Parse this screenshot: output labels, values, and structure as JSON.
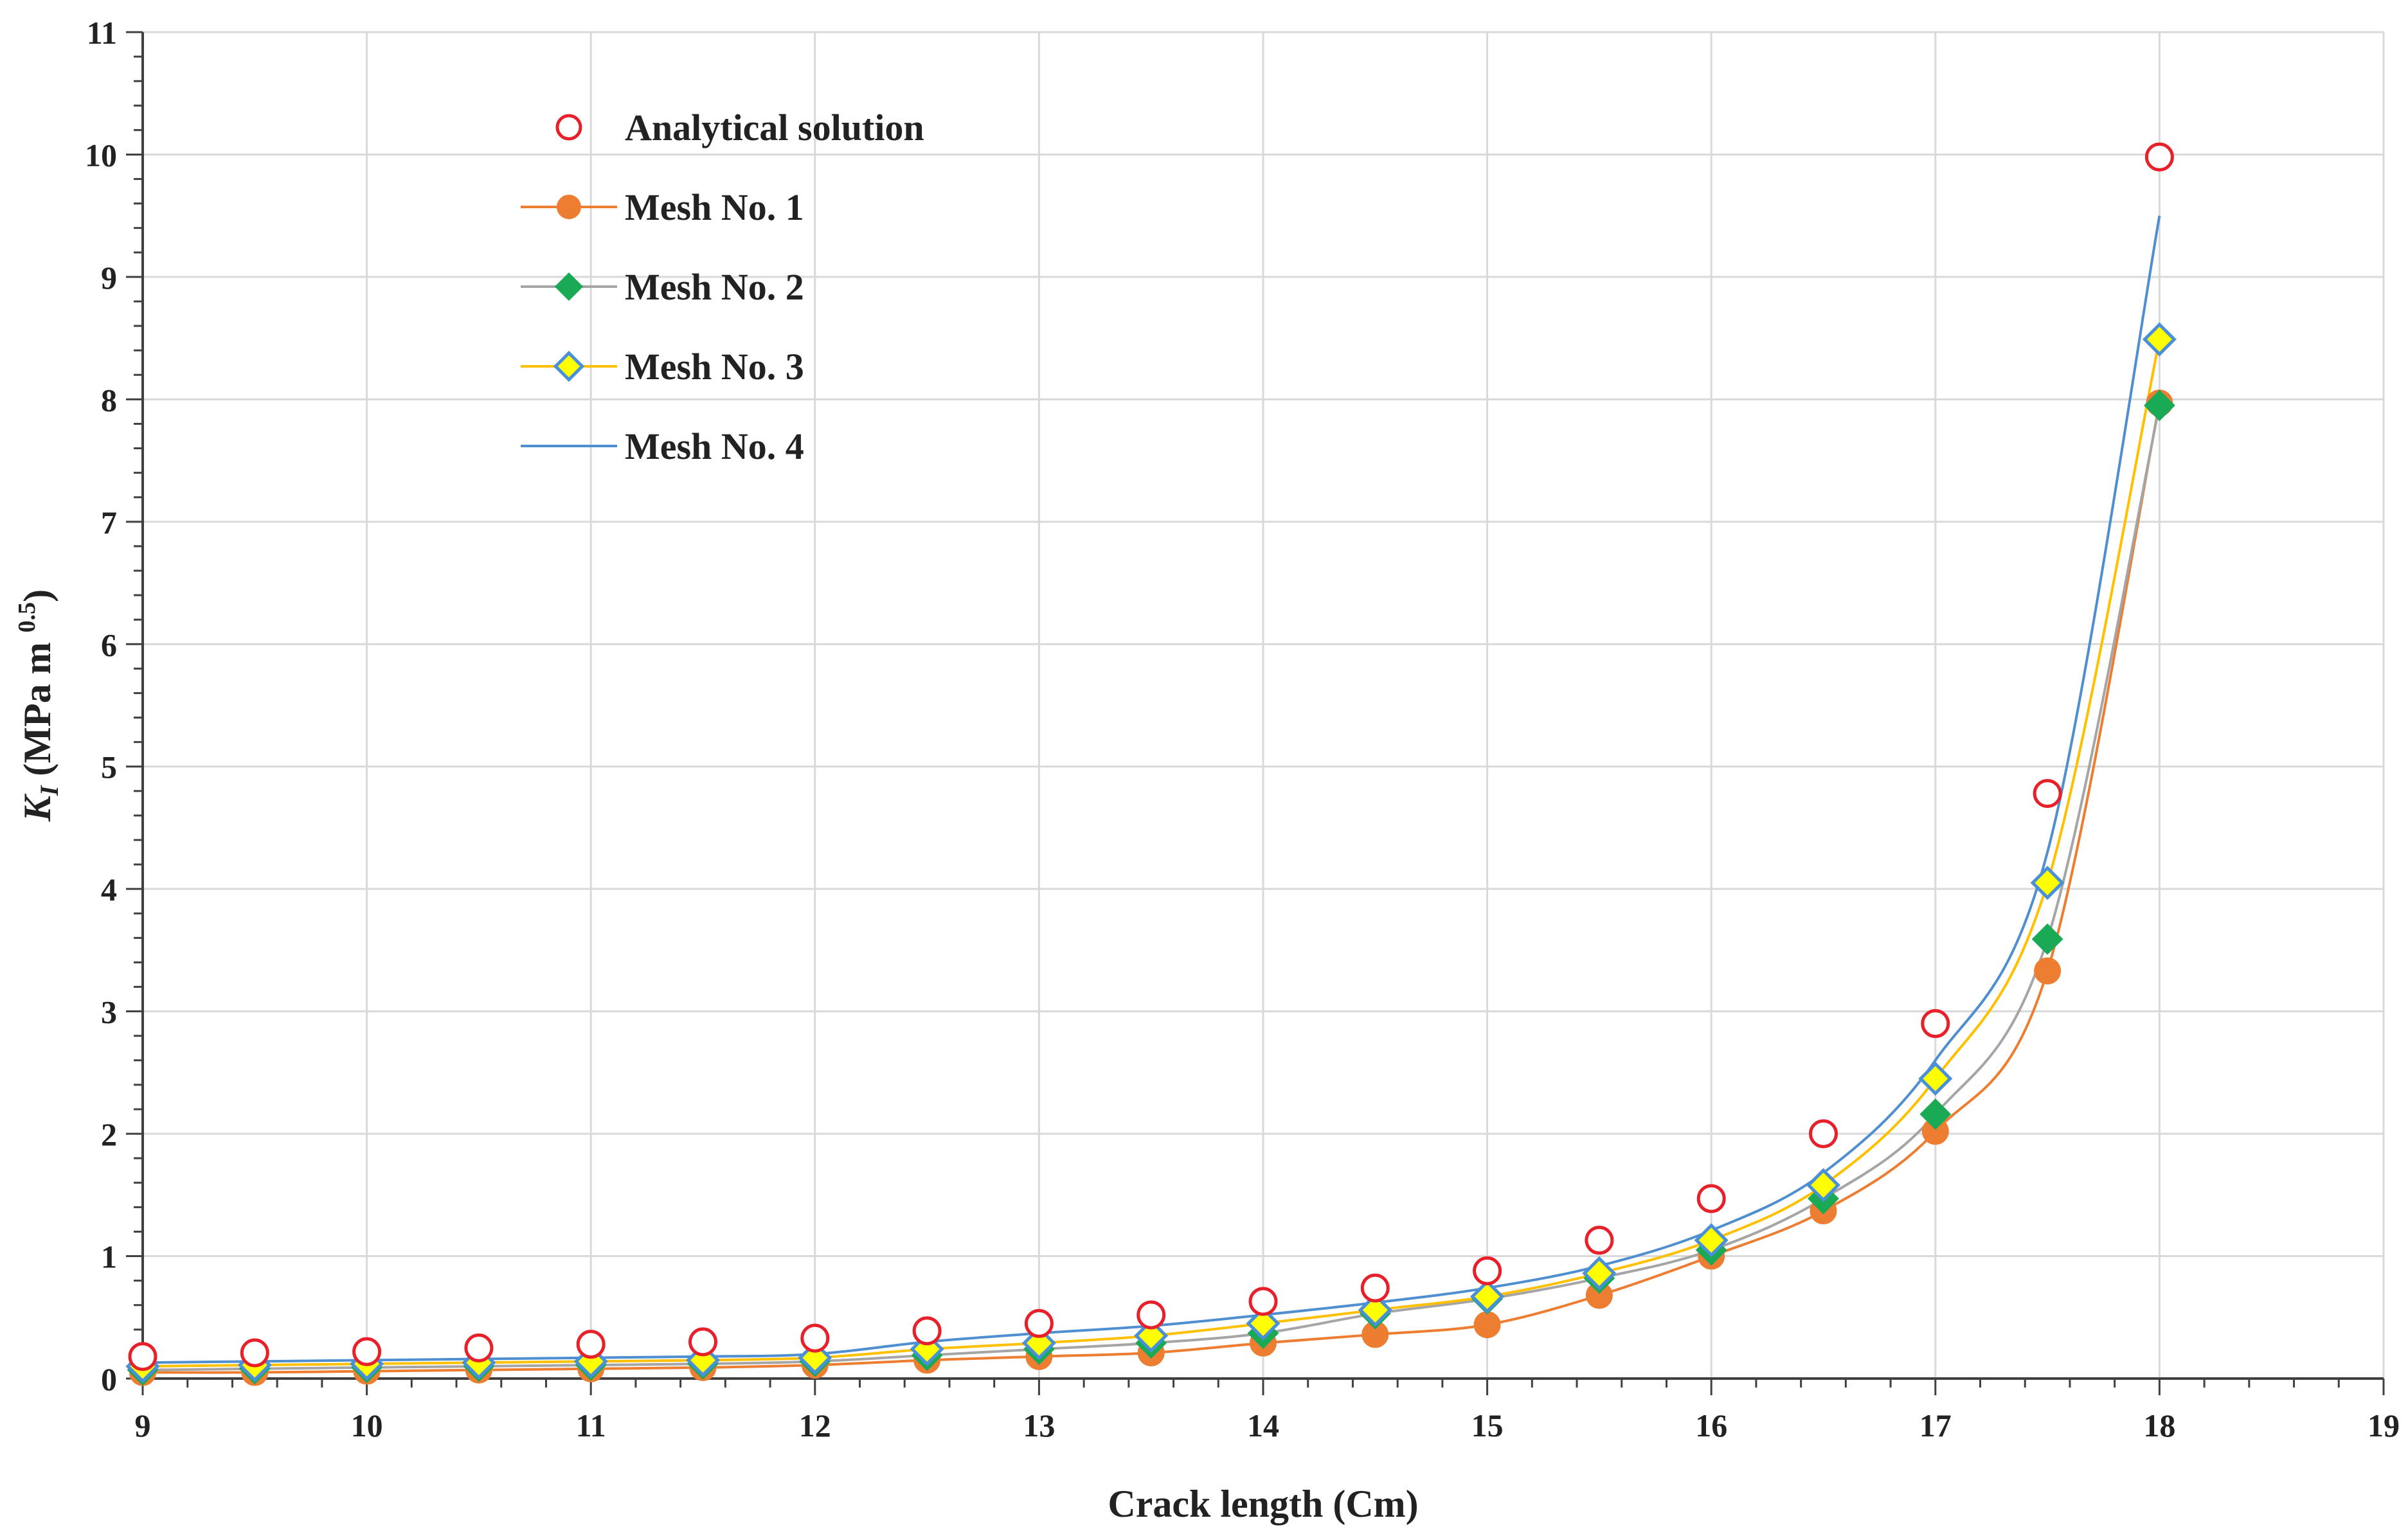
{
  "chart_data": {
    "type": "scatter",
    "xlabel": "Crack length (Cm)",
    "ylabel": {
      "symbol": "K",
      "subscript": "I",
      "unit_main": " (MPa m ",
      "unit_exp": "0.5",
      "unit_close": ")"
    },
    "xlim": [
      9,
      19
    ],
    "ylim": [
      0,
      11
    ],
    "x_ticks": [
      "9",
      "10",
      "11",
      "12",
      "13",
      "14",
      "15",
      "16",
      "17",
      "18",
      "19"
    ],
    "y_ticks": [
      "0",
      "1",
      "2",
      "3",
      "4",
      "5",
      "6",
      "7",
      "8",
      "9",
      "10",
      "11"
    ],
    "grid": true,
    "legend_position": "top-left",
    "x": [
      9,
      9.5,
      10,
      10.5,
      11,
      11.5,
      12,
      12.5,
      13,
      13.5,
      14,
      14.5,
      15,
      15.5,
      16,
      16.5,
      17,
      17.5,
      18
    ],
    "series": [
      {
        "name": "Analytical solution",
        "style": "open-circle",
        "color": "#e8202a",
        "values": [
          0.18,
          0.21,
          0.22,
          0.25,
          0.28,
          0.3,
          0.33,
          0.39,
          0.45,
          0.52,
          0.63,
          0.74,
          0.88,
          1.13,
          1.47,
          2.0,
          2.9,
          4.78,
          9.98
        ]
      },
      {
        "name": "Mesh No. 1",
        "style": "line-circle",
        "color": "#ed7d31",
        "values": [
          0.05,
          0.05,
          0.06,
          0.07,
          0.08,
          0.09,
          0.11,
          0.15,
          0.18,
          0.21,
          0.29,
          0.36,
          0.44,
          0.68,
          1.0,
          1.37,
          2.02,
          3.33,
          7.97
        ]
      },
      {
        "name": "Mesh No. 2",
        "style": "line-diamond",
        "color": "#a5a5a5",
        "marker_color": "#1aaa55",
        "values": [
          0.07,
          0.08,
          0.09,
          0.1,
          0.11,
          0.12,
          0.14,
          0.19,
          0.24,
          0.29,
          0.37,
          0.53,
          0.65,
          0.82,
          1.05,
          1.47,
          2.16,
          3.59,
          7.95
        ]
      },
      {
        "name": "Mesh No. 3",
        "style": "line-diamond",
        "color": "#ffc000",
        "marker_color": "#ffff00",
        "marker_edge": "#4a90d9",
        "values": [
          0.1,
          0.11,
          0.12,
          0.13,
          0.14,
          0.15,
          0.17,
          0.24,
          0.29,
          0.35,
          0.45,
          0.56,
          0.67,
          0.86,
          1.13,
          1.58,
          2.45,
          4.05,
          8.49
        ]
      },
      {
        "name": "Mesh No. 4",
        "style": "line",
        "color": "#4f8fd0",
        "values": [
          0.13,
          0.14,
          0.15,
          0.16,
          0.17,
          0.18,
          0.2,
          0.3,
          0.37,
          0.43,
          0.52,
          0.62,
          0.74,
          0.92,
          1.21,
          1.68,
          2.6,
          4.3,
          9.5
        ]
      }
    ]
  }
}
